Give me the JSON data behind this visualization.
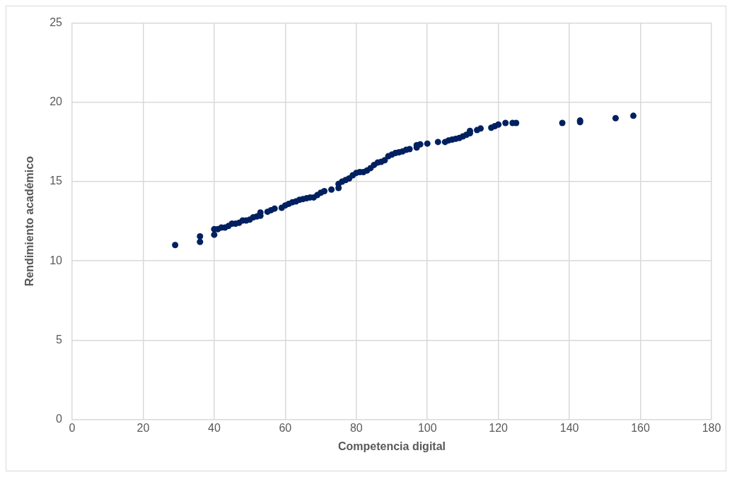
{
  "chart_data": {
    "type": "scatter",
    "xlabel": "Competencia digital",
    "ylabel": "Rendimiento académico",
    "xlim": [
      0,
      180
    ],
    "xticks": [
      0,
      20,
      40,
      60,
      80,
      100,
      120,
      140,
      160,
      180
    ],
    "ylim": [
      0,
      25
    ],
    "yticks": [
      0,
      5,
      10,
      15,
      20,
      25
    ],
    "grid": true,
    "legend": false,
    "marker": "circle",
    "series": [
      {
        "color": "#002060",
        "x": [
          29,
          36,
          36,
          40,
          40,
          41,
          42,
          43,
          44,
          45,
          46,
          47,
          48,
          49,
          50,
          51,
          52,
          53,
          53,
          55,
          56,
          57,
          59,
          60,
          61,
          62,
          63,
          64,
          65,
          66,
          67,
          68,
          69,
          70,
          71,
          73,
          75,
          75,
          76,
          77,
          78,
          79,
          80,
          81,
          82,
          83,
          84,
          85,
          86,
          87,
          88,
          89,
          90,
          91,
          92,
          93,
          94,
          95,
          97,
          97,
          98,
          100,
          103,
          105,
          106,
          107,
          108,
          109,
          110,
          111,
          112,
          112,
          114,
          115,
          118,
          119,
          120,
          122,
          124,
          125,
          138,
          143,
          143,
          153,
          158
        ],
        "values": [
          11.0,
          11.2,
          11.55,
          11.65,
          12.0,
          12.0,
          12.1,
          12.1,
          12.2,
          12.35,
          12.35,
          12.4,
          12.55,
          12.55,
          12.6,
          12.75,
          12.8,
          12.85,
          13.05,
          13.1,
          13.2,
          13.3,
          13.35,
          13.5,
          13.6,
          13.7,
          13.75,
          13.85,
          13.9,
          13.95,
          14.0,
          14.0,
          14.15,
          14.3,
          14.4,
          14.5,
          14.6,
          14.85,
          15.0,
          15.1,
          15.2,
          15.4,
          15.55,
          15.6,
          15.6,
          15.7,
          15.85,
          16.05,
          16.2,
          16.25,
          16.35,
          16.6,
          16.7,
          16.8,
          16.85,
          16.9,
          17.0,
          17.05,
          17.15,
          17.3,
          17.35,
          17.4,
          17.5,
          17.5,
          17.6,
          17.65,
          17.7,
          17.75,
          17.85,
          17.95,
          18.05,
          18.2,
          18.25,
          18.35,
          18.4,
          18.5,
          18.6,
          18.7,
          18.7,
          18.7,
          18.7,
          18.75,
          18.85,
          19.0,
          19.15
        ]
      }
    ]
  }
}
